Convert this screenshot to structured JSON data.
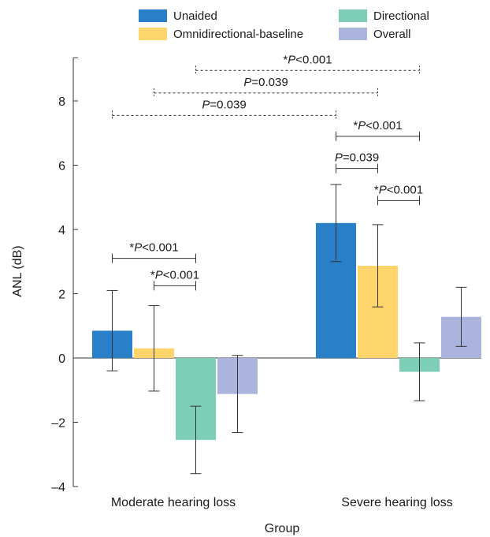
{
  "chart_data": {
    "type": "bar",
    "categories": [
      "Moderate hearing loss",
      "Severe hearing loss"
    ],
    "series": [
      {
        "name": "Unaided",
        "values": [
          0.85,
          4.2
        ],
        "error": [
          1.25,
          1.2
        ],
        "color": "#2a80c8"
      },
      {
        "name": "Omnidirectional-baseline",
        "values": [
          0.3,
          2.87
        ],
        "error": [
          1.33,
          1.28
        ],
        "color": "#fdd56a"
      },
      {
        "name": "Directional",
        "values": [
          -2.55,
          -0.43
        ],
        "error": [
          1.05,
          0.9
        ],
        "color": "#7ccfb6"
      },
      {
        "name": "Overall",
        "values": [
          -1.12,
          1.28
        ],
        "error": [
          1.2,
          0.92
        ],
        "color": "#aab4dc"
      }
    ],
    "xlabel": "Group",
    "ylabel": "ANL (dB)",
    "ylim": [
      -4,
      9
    ],
    "yticks": [
      -4,
      -2,
      0,
      2,
      4,
      6,
      8
    ],
    "ytick_labels": [
      "–4",
      "–2",
      "0",
      "2",
      "4",
      "6",
      "8"
    ],
    "legend_position": "top",
    "significance": [
      {
        "label": "*P<0.001",
        "prefix": "*",
        "italic": "P",
        "rest": "<0.001",
        "from": [
          0,
          0
        ],
        "to": [
          0,
          2
        ],
        "y": 3.1,
        "style": "solid"
      },
      {
        "label": "*P<0.001",
        "prefix": "*",
        "italic": "P",
        "rest": "<0.001",
        "from": [
          0,
          1
        ],
        "to": [
          0,
          2
        ],
        "y": 2.25,
        "style": "solid"
      },
      {
        "label": "*P<0.001",
        "prefix": "*",
        "italic": "P",
        "rest": "<0.001",
        "from": [
          1,
          0
        ],
        "to": [
          1,
          2
        ],
        "y": 6.9,
        "style": "solid"
      },
      {
        "label": "P=0.039",
        "prefix": "",
        "italic": "P",
        "rest": "=0.039",
        "from": [
          1,
          0
        ],
        "to": [
          1,
          1
        ],
        "y": 5.9,
        "style": "solid"
      },
      {
        "label": "*P<0.001",
        "prefix": "*",
        "italic": "P",
        "rest": "<0.001",
        "from": [
          1,
          1
        ],
        "to": [
          1,
          2
        ],
        "y": 4.9,
        "style": "solid"
      },
      {
        "label": "*P<0.001",
        "prefix": "*",
        "italic": "P",
        "rest": "<0.001",
        "from": [
          0,
          2
        ],
        "to": [
          1,
          2
        ],
        "y": 8.95,
        "style": "dashed"
      },
      {
        "label": "P=0.039",
        "prefix": "",
        "italic": "P",
        "rest": "=0.039",
        "from": [
          0,
          1
        ],
        "to": [
          1,
          1
        ],
        "y": 8.25,
        "style": "dashed"
      },
      {
        "label": "P=0.039",
        "prefix": "",
        "italic": "P",
        "rest": "=0.039",
        "from": [
          0,
          0
        ],
        "to": [
          1,
          0
        ],
        "y": 7.55,
        "style": "dashed"
      }
    ]
  }
}
